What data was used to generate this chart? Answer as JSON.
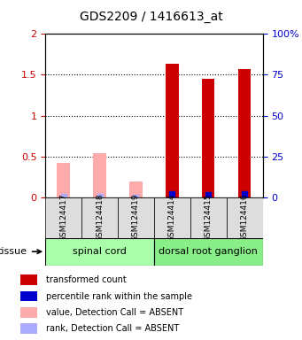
{
  "title": "GDS2209 / 1416613_at",
  "samples": [
    "GSM124417",
    "GSM124418",
    "GSM124419",
    "GSM124414",
    "GSM124415",
    "GSM124416"
  ],
  "groups": [
    "spinal cord",
    "spinal cord",
    "spinal cord",
    "dorsal root ganglion",
    "dorsal root ganglion",
    "dorsal root ganglion"
  ],
  "group_labels": [
    "spinal cord",
    "dorsal root ganglion"
  ],
  "group_colors": [
    "#aaffaa",
    "#66dd66"
  ],
  "bar_values": [
    0.0,
    0.0,
    0.0,
    1.63,
    1.45,
    1.57
  ],
  "bar_absent_values": [
    0.42,
    0.54,
    0.19,
    0.0,
    0.0,
    0.0
  ],
  "rank_values": [
    0.0,
    0.0,
    0.0,
    1.82,
    1.7,
    1.81
  ],
  "rank_absent_values": [
    0.13,
    0.27,
    0.06,
    0.0,
    0.0,
    0.0
  ],
  "bar_color": "#cc0000",
  "bar_absent_color": "#ffaaaa",
  "rank_color": "#0000cc",
  "rank_absent_color": "#aaaaff",
  "ylim_left": [
    0,
    2
  ],
  "ylim_right": [
    0,
    100
  ],
  "yticks_left": [
    0,
    0.5,
    1,
    1.5,
    2
  ],
  "ytick_labels_left": [
    "0",
    "0.5",
    "1",
    "1.5",
    "2"
  ],
  "ytick_labels_right": [
    "0",
    "25",
    "50",
    "75",
    "100%"
  ],
  "ylabel_left_color": "#cc0000",
  "ylabel_right_color": "#0000cc",
  "xlabel": "tissue",
  "bar_width": 0.35,
  "rank_scale": 0.02,
  "legend_items": [
    {
      "label": "transformed count",
      "color": "#cc0000",
      "marker": "s"
    },
    {
      "label": "percentile rank within the sample",
      "color": "#0000cc",
      "marker": "s"
    },
    {
      "label": "value, Detection Call = ABSENT",
      "color": "#ffaaaa",
      "marker": "s"
    },
    {
      "label": "rank, Detection Call = ABSENT",
      "color": "#aaaaff",
      "marker": "s"
    }
  ]
}
